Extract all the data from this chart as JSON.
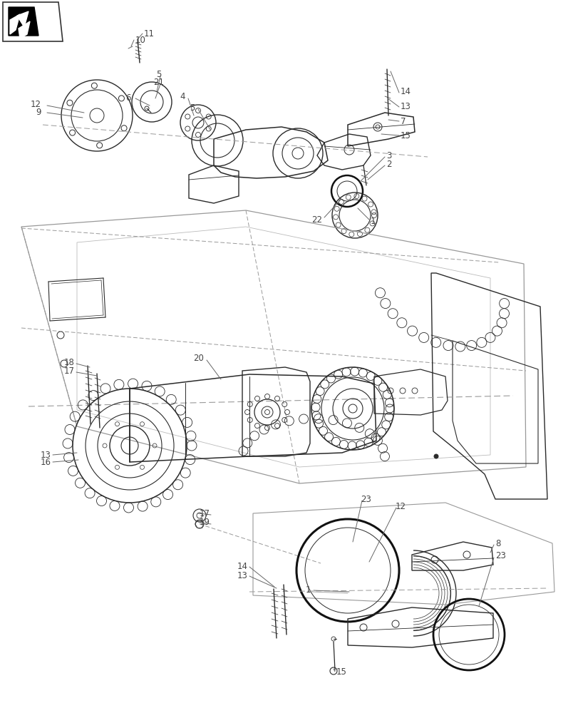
{
  "background_color": "#ffffff",
  "line_color": "#2a2a2a",
  "dashed_color": "#999999",
  "label_color": "#444444",
  "lfs": 8.5
}
